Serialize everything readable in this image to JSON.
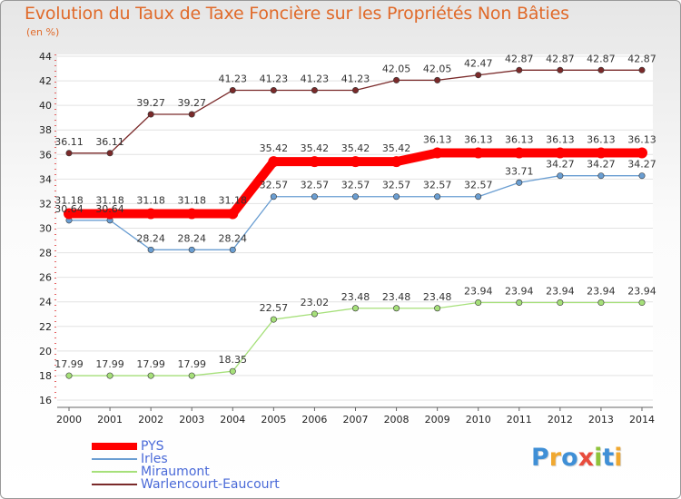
{
  "chart_data": {
    "type": "line",
    "title": "Evolution du Taux de Taxe Foncière sur les Propriétés Non Bâties",
    "subtitle": "(en %)",
    "xlabel": "",
    "ylabel": "(en %)",
    "x": [
      "2000",
      "2001",
      "2002",
      "2003",
      "2004",
      "2005",
      "2006",
      "2007",
      "2008",
      "2009",
      "2010",
      "2011",
      "2012",
      "2013",
      "2014"
    ],
    "ylim": [
      16,
      44
    ],
    "yticks": [
      "16",
      "18",
      "20",
      "22",
      "24",
      "26",
      "28",
      "30",
      "32",
      "34",
      "36",
      "38",
      "40",
      "42",
      "44"
    ],
    "grid": "horizontal",
    "legend_position": "bottom-left",
    "series": [
      {
        "name": "PYS",
        "color": "#ff0000",
        "values": [
          31.18,
          31.18,
          31.18,
          31.18,
          31.18,
          35.42,
          35.42,
          35.42,
          35.42,
          36.13,
          36.13,
          36.13,
          36.13,
          36.13,
          36.13
        ],
        "labels": [
          "31.18",
          "31.18",
          "31.18",
          "31.18",
          "31.18",
          "35.42",
          "35.42",
          "35.42",
          "35.42",
          "36.13",
          "36.13",
          "36.13",
          "36.13",
          "36.13",
          "36.13"
        ]
      },
      {
        "name": "Irles",
        "color": "#6a9ed2",
        "values": [
          30.64,
          30.64,
          28.24,
          28.24,
          28.24,
          32.57,
          32.57,
          32.57,
          32.57,
          32.57,
          32.57,
          33.71,
          34.27,
          34.27,
          34.27
        ],
        "labels": [
          "30.64",
          "30.64",
          "28.24",
          "28.24",
          "28.24",
          "32.57",
          "32.57",
          "32.57",
          "32.57",
          "32.57",
          "32.57",
          "33.71",
          "34.27",
          "34.27",
          "34.27"
        ]
      },
      {
        "name": "Miraumont",
        "color": "#a6e07a",
        "values": [
          17.99,
          17.99,
          17.99,
          17.99,
          18.35,
          22.57,
          23.02,
          23.48,
          23.48,
          23.48,
          23.94,
          23.94,
          23.94,
          23.94,
          23.94
        ],
        "labels": [
          "17.99",
          "17.99",
          "17.99",
          "17.99",
          "18.35",
          "22.57",
          "23.02",
          "23.48",
          "23.48",
          "23.48",
          "23.94",
          "23.94",
          "23.94",
          "23.94",
          "23.94"
        ]
      },
      {
        "name": "Warlencourt-Eaucourt",
        "color": "#7a2a2a",
        "values": [
          36.11,
          36.11,
          39.27,
          39.27,
          41.23,
          41.23,
          41.23,
          41.23,
          42.05,
          42.05,
          42.47,
          42.87,
          42.87,
          42.87,
          42.87
        ],
        "labels": [
          "36.11",
          "36.11",
          "39.27",
          "39.27",
          "41.23",
          "41.23",
          "41.23",
          "41.23",
          "42.05",
          "42.05",
          "42.47",
          "42.87",
          "42.87",
          "42.87",
          "42.87"
        ]
      }
    ]
  },
  "logo": {
    "letters": [
      "P",
      "r",
      "o",
      "x",
      "i",
      "t",
      "i"
    ],
    "colors": [
      "#3f8fd6",
      "#f0a830",
      "#3f8fd6",
      "#e84c3d",
      "#8fc33b",
      "#3f8fd6",
      "#f0a830"
    ]
  }
}
